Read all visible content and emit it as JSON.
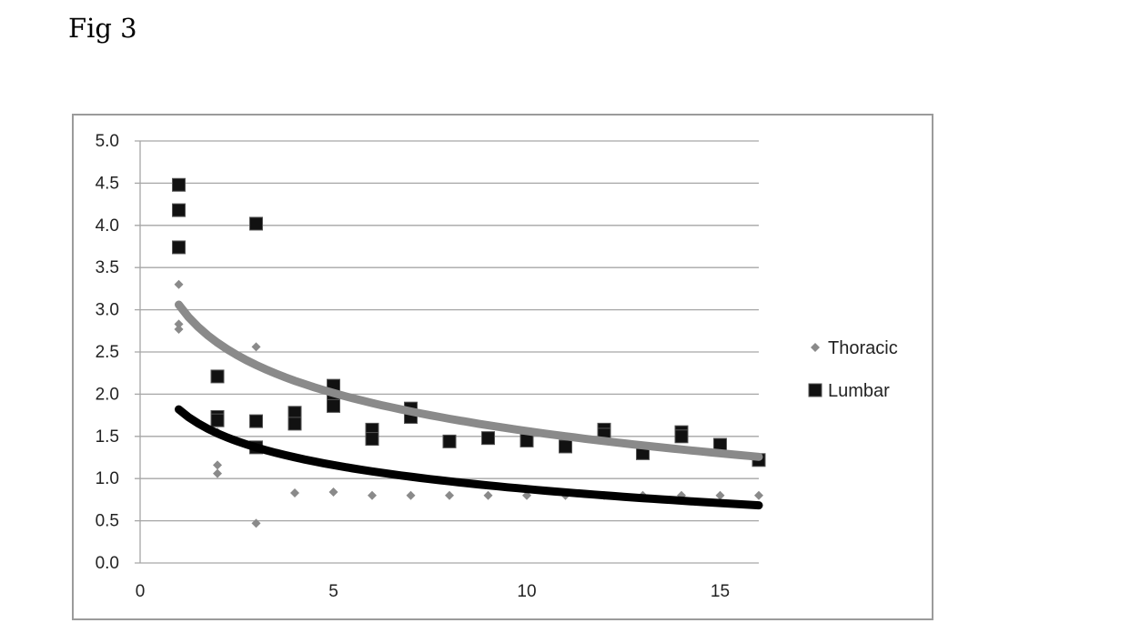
{
  "figure": {
    "label": "Fig 3"
  },
  "chart_data": {
    "type": "scatter",
    "title": "",
    "xlabel": "",
    "ylabel": "",
    "xlim": [
      0,
      16
    ],
    "ylim": [
      0,
      5
    ],
    "x_ticks": [
      0,
      5,
      10,
      15
    ],
    "x_tick_labels": [
      "0",
      "5",
      "10",
      "15"
    ],
    "y_ticks": [
      0,
      0.5,
      1,
      1.5,
      2,
      2.5,
      3,
      3.5,
      4,
      4.5,
      5
    ],
    "y_tick_labels": [
      "0.0",
      "0.5",
      "1.0",
      "1.5",
      "2.0",
      "2.5",
      "3.0",
      "3.5",
      "4.0",
      "4.5",
      "5.0"
    ],
    "grid": "horizontal",
    "legend_position": "right",
    "series": [
      {
        "name": "Thoracic",
        "marker": "diamond",
        "color": "#8a8a8a",
        "points": [
          [
            1,
            3.3
          ],
          [
            1,
            2.83
          ],
          [
            1,
            2.77
          ],
          [
            2,
            1.16
          ],
          [
            2,
            1.06
          ],
          [
            2,
            1.55
          ],
          [
            3,
            2.56
          ],
          [
            3,
            0.47
          ],
          [
            4,
            0.83
          ],
          [
            5,
            0.84
          ],
          [
            6,
            0.8
          ],
          [
            7,
            0.8
          ],
          [
            8,
            0.8
          ],
          [
            9,
            0.8
          ],
          [
            10,
            0.8
          ],
          [
            11,
            0.8
          ],
          [
            12,
            0.8
          ],
          [
            13,
            0.8
          ],
          [
            14,
            0.8
          ],
          [
            15,
            0.8
          ],
          [
            16,
            0.8
          ]
        ]
      },
      {
        "name": "Lumbar",
        "marker": "square",
        "color": "#111111",
        "points": [
          [
            1,
            4.48
          ],
          [
            1,
            4.18
          ],
          [
            1,
            3.74
          ],
          [
            2,
            2.21
          ],
          [
            2,
            1.73
          ],
          [
            2,
            1.69
          ],
          [
            3,
            4.02
          ],
          [
            3,
            1.68
          ],
          [
            3,
            1.37
          ],
          [
            4,
            1.78
          ],
          [
            4,
            1.65
          ],
          [
            5,
            2.1
          ],
          [
            5,
            1.96
          ],
          [
            5,
            1.86
          ],
          [
            6,
            1.58
          ],
          [
            6,
            1.47
          ],
          [
            7,
            1.83
          ],
          [
            7,
            1.73
          ],
          [
            8,
            1.44
          ],
          [
            9,
            1.48
          ],
          [
            10,
            1.45
          ],
          [
            11,
            1.38
          ],
          [
            12,
            1.58
          ],
          [
            12,
            1.52
          ],
          [
            13,
            1.3
          ],
          [
            14,
            1.55
          ],
          [
            14,
            1.5
          ],
          [
            15,
            1.4
          ],
          [
            16,
            1.22
          ]
        ]
      }
    ],
    "trendlines": [
      {
        "series": "Lumbar",
        "type": "logarithmic",
        "color": "#8a8a8a",
        "x_range": [
          1,
          16
        ],
        "a": 3.06,
        "b": -0.65
      },
      {
        "series": "Thoracic",
        "type": "logarithmic",
        "color": "#000000",
        "x_range": [
          1,
          16
        ],
        "a": 1.82,
        "b": -0.41
      }
    ]
  }
}
